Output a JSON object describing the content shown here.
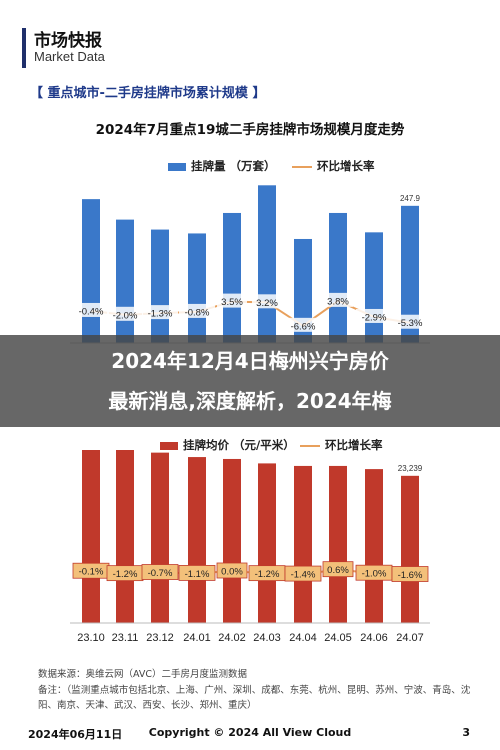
{
  "header": {
    "title": "市场快报",
    "subtitle": "Market Data"
  },
  "section_title": "【 重点城市-二手房挂牌市场累计规模 】",
  "banner": {
    "line1": "2024年12月4日梅州兴宁房价",
    "line2": "最新消息,深度解析，2024年梅"
  },
  "footer": {
    "source": "数据来源：奥维云网（AVC）二手房月度监测数据",
    "note": "备注：（监测重点城市包括北京、上海、广州、深圳、成都、东莞、杭州、昆明、苏州、宁波、青岛、沈阳、南京、天津、武汉、西安、长沙、郑州、重庆）"
  },
  "bottom": {
    "left": "2024年06月11日",
    "center": "Copyright © 2024 All View Cloud",
    "page": "3"
  },
  "colors": {
    "bar1": "#3a78c9",
    "bar2": "#c0392b",
    "line": "#e8a05c",
    "label_box": "#f3c07a"
  },
  "chart_data": [
    {
      "type": "bar",
      "title": "2024年7月重点19城二手房挂牌市场规模月度走势",
      "categories": [
        "23.10",
        "23.11",
        "23.12",
        "24.01",
        "24.02",
        "24.03",
        "24.04",
        "24.05",
        "24.06",
        "24.07"
      ],
      "series": [
        {
          "name": "挂牌量 （万套）",
          "values": [
            260,
            223,
            205,
            198,
            235,
            285,
            188,
            235,
            200,
            247.9
          ],
          "data_labels": [
            "",
            "",
            "",
            "",
            "",
            "",
            "",
            "",
            "",
            "247.9"
          ]
        },
        {
          "name": "环比增长率",
          "type": "line",
          "values": [
            -0.4,
            -2.0,
            -1.3,
            -0.8,
            3.5,
            3.2,
            -6.6,
            3.8,
            -2.9,
            -5.3
          ],
          "data_labels": [
            "-0.4%",
            "-2.0%",
            "-1.3%",
            "-0.8%",
            "3.5%",
            "3.2%",
            "-6.6%",
            "3.8%",
            "-2.9%",
            "-5.3%"
          ]
        }
      ]
    },
    {
      "type": "bar",
      "title": "",
      "categories": [
        "23.10",
        "23.11",
        "23.12",
        "24.01",
        "24.02",
        "24.03",
        "24.04",
        "24.05",
        "24.06",
        "24.07"
      ],
      "series": [
        {
          "name": "挂牌均价 （元/平米）",
          "values": [
            28500,
            27600,
            26900,
            26200,
            25900,
            25200,
            24800,
            24800,
            24300,
            23239
          ],
          "data_labels": [
            "",
            "",
            "",
            "",
            "",
            "",
            "",
            "",
            "",
            "23,239"
          ]
        },
        {
          "name": "环比增长率",
          "type": "line",
          "values": [
            -0.1,
            -1.2,
            -0.7,
            -1.1,
            0.0,
            -1.2,
            -1.4,
            0.6,
            -1.0,
            -1.6
          ],
          "data_labels": [
            "-0.1%",
            "-1.2%",
            "-0.7%",
            "-1.1%",
            "0.0%",
            "-1.2%",
            "-1.4%",
            "0.6%",
            "-1.0%",
            "-1.6%"
          ]
        }
      ]
    }
  ]
}
